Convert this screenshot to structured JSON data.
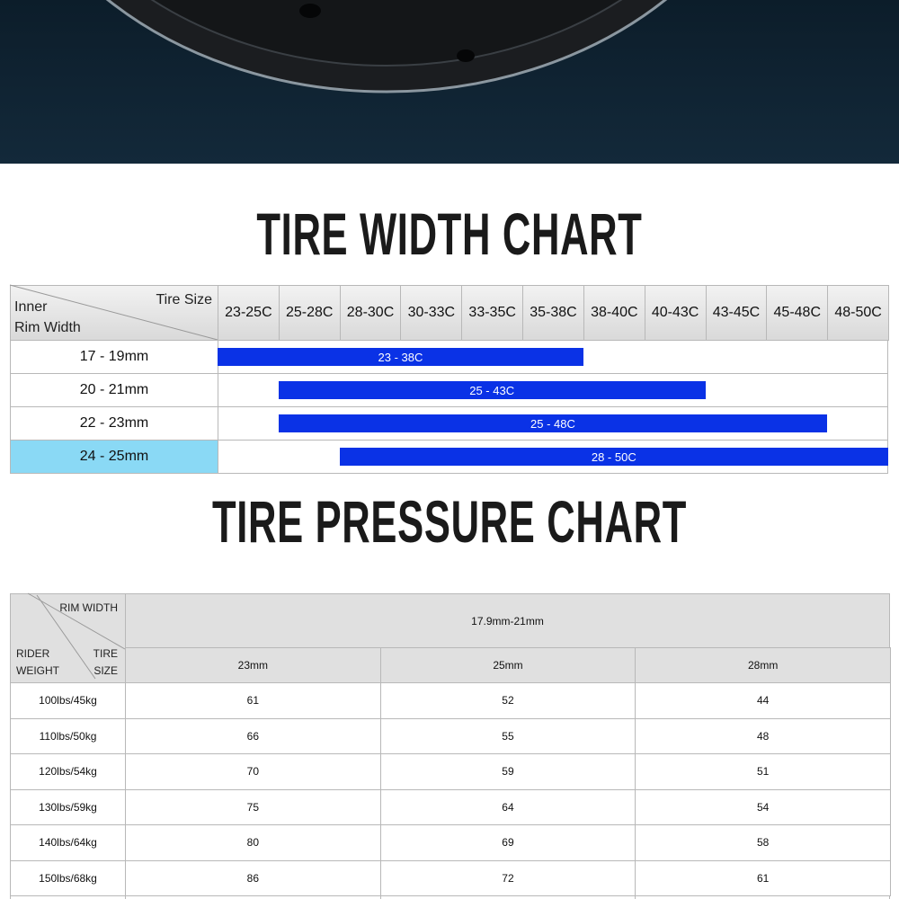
{
  "tire_width_chart": {
    "title": "TIRE WIDTH CHART",
    "corner": {
      "top": "Tire Size",
      "bottom": "Inner\nRim Width"
    },
    "columns": [
      "23-25C",
      "25-28C",
      "28-30C",
      "30-33C",
      "33-35C",
      "35-38C",
      "38-40C",
      "40-43C",
      "43-45C",
      "45-48C",
      "48-50C"
    ],
    "rows": [
      {
        "rim_width": "17 - 19mm",
        "range": "23 - 38C"
      },
      {
        "rim_width": "20 - 21mm",
        "range": "25 - 43C"
      },
      {
        "rim_width": "22 - 23mm",
        "range": "25 - 48C"
      },
      {
        "rim_width": "24 - 25mm",
        "range": "28 - 50C"
      }
    ]
  },
  "tire_pressure_chart": {
    "title": "TIRE PRESSURE CHART",
    "corner": {
      "top": "RIM WIDTH",
      "left": "RIDER\nWEIGHT",
      "right": "TIRE\nSIZE"
    },
    "rim_width": "17.9mm-21mm",
    "tire_sizes": [
      "23mm",
      "25mm",
      "28mm"
    ],
    "rows": [
      {
        "rider_weight": "100lbs/45kg",
        "values": [
          61,
          52,
          44
        ]
      },
      {
        "rider_weight": "110lbs/50kg",
        "values": [
          66,
          55,
          48
        ]
      },
      {
        "rider_weight": "120lbs/54kg",
        "values": [
          70,
          59,
          51
        ]
      },
      {
        "rider_weight": "130lbs/59kg",
        "values": [
          75,
          64,
          54
        ]
      },
      {
        "rider_weight": "140lbs/64kg",
        "values": [
          80,
          69,
          58
        ]
      },
      {
        "rider_weight": "150lbs/68kg",
        "values": [
          86,
          72,
          61
        ]
      }
    ]
  }
}
